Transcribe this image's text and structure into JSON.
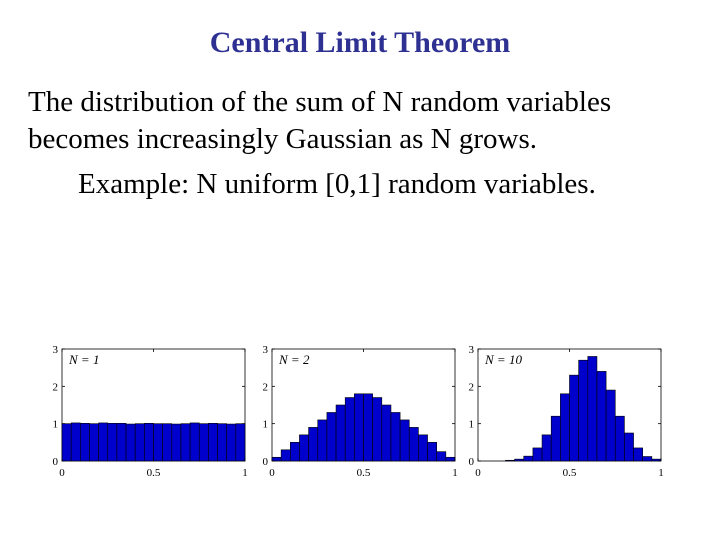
{
  "slide": {
    "title": "Central Limit Theorem",
    "line1": "The distribution of the sum of N random variables",
    "line2": "becomes increasingly Gaussian as N grows.",
    "example": "Example: N uniform [0,1] random variables."
  },
  "colors": {
    "title": "#2e3192",
    "bar_fill": "#0000cc",
    "bar_stroke": "#000000"
  },
  "chart_data": [
    {
      "type": "bar",
      "label": "N = 1",
      "xlim": [
        0,
        1
      ],
      "ylim": [
        0,
        3
      ],
      "xticks": [
        "0",
        "0.5",
        "1"
      ],
      "yticks": [
        "0",
        "1",
        "2",
        "3"
      ],
      "values": [
        1.0,
        1.02,
        1.01,
        1.0,
        1.02,
        1.01,
        1.01,
        0.99,
        1.0,
        1.01,
        1.0,
        1.0,
        0.99,
        1.0,
        1.02,
        1.0,
        1.01,
        1.0,
        0.99,
        1.0
      ]
    },
    {
      "type": "bar",
      "label": "N = 2",
      "xlim": [
        0,
        1
      ],
      "ylim": [
        0,
        3
      ],
      "xticks": [
        "0",
        "0.5",
        "1"
      ],
      "yticks": [
        "0",
        "1",
        "2",
        "3"
      ],
      "values": [
        0.1,
        0.3,
        0.5,
        0.7,
        0.9,
        1.1,
        1.3,
        1.5,
        1.7,
        1.8,
        1.8,
        1.7,
        1.5,
        1.3,
        1.1,
        0.9,
        0.7,
        0.5,
        0.25,
        0.1
      ]
    },
    {
      "type": "bar",
      "label": "N = 10",
      "xlim": [
        0,
        1
      ],
      "ylim": [
        0,
        3
      ],
      "xticks": [
        "0",
        "0.5",
        "1"
      ],
      "yticks": [
        "0",
        "1",
        "2",
        "3"
      ],
      "values": [
        0.0,
        0.0,
        0.0,
        0.02,
        0.05,
        0.13,
        0.35,
        0.7,
        1.2,
        1.8,
        2.3,
        2.7,
        2.8,
        2.4,
        1.9,
        1.2,
        0.75,
        0.35,
        0.12,
        0.05
      ]
    }
  ]
}
